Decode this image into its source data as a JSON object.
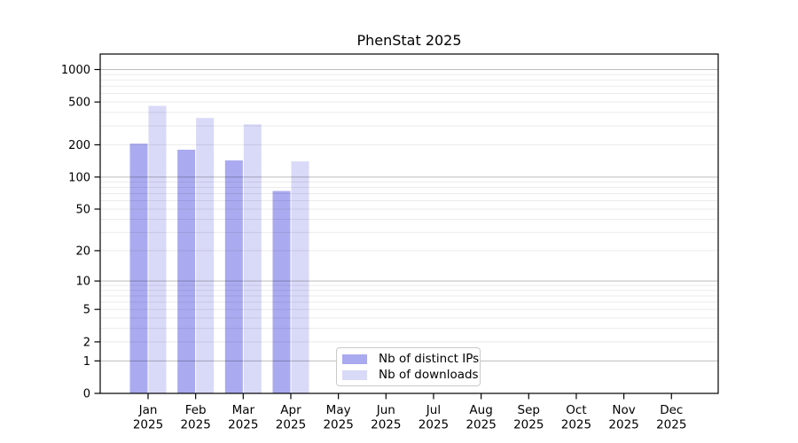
{
  "chart_data": {
    "type": "bar",
    "title": "PhenStat 2025",
    "categories": [
      "Jan",
      "Feb",
      "Mar",
      "Apr",
      "May",
      "Jun",
      "Jul",
      "Aug",
      "Sep",
      "Oct",
      "Nov",
      "Dec"
    ],
    "category_year": "2025",
    "series": [
      {
        "name": "Nb of distinct IPs",
        "color": "#aaaaf0",
        "values": [
          205,
          180,
          143,
          74,
          0,
          0,
          0,
          0,
          0,
          0,
          0,
          0
        ]
      },
      {
        "name": "Nb of downloads",
        "color": "#d9d9f8",
        "values": [
          460,
          355,
          310,
          140,
          0,
          0,
          0,
          0,
          0,
          0,
          0,
          0
        ]
      }
    ],
    "yticks": [
      0,
      1,
      2,
      5,
      10,
      20,
      50,
      100,
      200,
      500,
      1000
    ],
    "ylim": [
      0,
      1400
    ],
    "yscale": "log10(1+y)",
    "grid": "horizontal",
    "legend_position": "inside-bottom-center"
  }
}
